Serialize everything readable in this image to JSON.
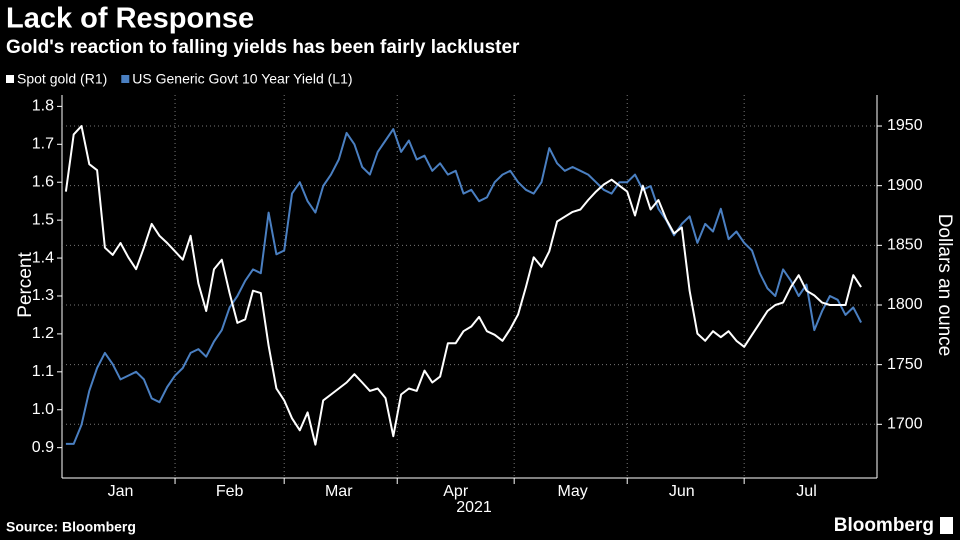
{
  "chart_data": {
    "type": "line",
    "title": "Lack of Response",
    "subtitle": "Gold's reaction to falling yields has been fairly lackluster",
    "ylabel": "Percent",
    "y2label": "Dollars an ounce",
    "xlabel": "2021",
    "source": "Source: Bloomberg",
    "brand": "Bloomberg",
    "categories": [
      null,
      null,
      null,
      null,
      null,
      null,
      null,
      "Jan",
      null,
      null,
      null,
      null,
      null,
      null,
      null,
      null,
      null,
      null,
      null,
      null,
      null,
      "Feb",
      null,
      null,
      null,
      null,
      null,
      null,
      null,
      null,
      null,
      null,
      null,
      null,
      null,
      "Mar",
      null,
      null,
      null,
      null,
      null,
      null,
      null,
      null,
      null,
      null,
      null,
      null,
      null,
      null,
      "Apr",
      null,
      null,
      null,
      null,
      null,
      null,
      null,
      null,
      null,
      null,
      null,
      null,
      null,
      null,
      "May",
      null,
      null,
      null,
      null,
      null,
      null,
      null,
      null,
      null,
      null,
      null,
      null,
      null,
      "Jun",
      null,
      null,
      null,
      null,
      null,
      null,
      null,
      null,
      null,
      null,
      null,
      null,
      null,
      null,
      null,
      "Jul",
      null,
      null,
      null,
      null,
      null,
      null,
      null
    ],
    "series": [
      {
        "name": "Spot gold (R1)",
        "color": "#ffffff",
        "axis": "y2",
        "values": [
          1895,
          1943,
          1950,
          1918,
          1913,
          1848,
          1842,
          1852,
          1840,
          1830,
          1848,
          1868,
          1858,
          1852,
          1845,
          1838,
          1858,
          1818,
          1795,
          1830,
          1838,
          1810,
          1785,
          1788,
          1812,
          1810,
          1766,
          1730,
          1720,
          1705,
          1695,
          1710,
          1683,
          1720,
          1725,
          1730,
          1735,
          1742,
          1735,
          1728,
          1730,
          1722,
          1690,
          1725,
          1730,
          1728,
          1745,
          1735,
          1740,
          1768,
          1768,
          1778,
          1782,
          1790,
          1778,
          1775,
          1770,
          1780,
          1792,
          1815,
          1840,
          1832,
          1845,
          1870,
          1874,
          1878,
          1880,
          1888,
          1895,
          1901,
          1905,
          1900,
          1895,
          1875,
          1900,
          1880,
          1888,
          1872,
          1860,
          1865,
          1812,
          1776,
          1770,
          1778,
          1773,
          1778,
          1770,
          1765,
          1775,
          1785,
          1795,
          1800,
          1802,
          1815,
          1825,
          1812,
          1808,
          1802,
          1800,
          1800,
          1800,
          1825,
          1815
        ]
      },
      {
        "name": "US Generic Govt 10 Year Yield (L1)",
        "color": "#4a7fc1",
        "values": [
          0.91,
          0.91,
          0.96,
          1.05,
          1.11,
          1.15,
          1.12,
          1.08,
          1.09,
          1.1,
          1.08,
          1.03,
          1.02,
          1.06,
          1.09,
          1.11,
          1.15,
          1.16,
          1.14,
          1.18,
          1.21,
          1.27,
          1.3,
          1.34,
          1.37,
          1.36,
          1.52,
          1.41,
          1.42,
          1.57,
          1.6,
          1.55,
          1.52,
          1.59,
          1.62,
          1.66,
          1.73,
          1.7,
          1.64,
          1.62,
          1.68,
          1.71,
          1.74,
          1.68,
          1.71,
          1.66,
          1.67,
          1.63,
          1.65,
          1.62,
          1.63,
          1.57,
          1.58,
          1.55,
          1.56,
          1.6,
          1.62,
          1.63,
          1.6,
          1.58,
          1.57,
          1.6,
          1.69,
          1.65,
          1.63,
          1.64,
          1.63,
          1.62,
          1.6,
          1.58,
          1.57,
          1.6,
          1.6,
          1.62,
          1.58,
          1.59,
          1.53,
          1.5,
          1.46,
          1.49,
          1.51,
          1.44,
          1.49,
          1.47,
          1.53,
          1.45,
          1.47,
          1.44,
          1.42,
          1.36,
          1.32,
          1.3,
          1.37,
          1.34,
          1.3,
          1.33,
          1.21,
          1.26,
          1.3,
          1.29,
          1.25,
          1.27,
          1.23
        ]
      }
    ],
    "ylim": [
      0.82,
      1.83
    ],
    "yticks": [
      0.9,
      {
        "value": 1,
        "label": "1.0"
      },
      1.1,
      1.2,
      1.3,
      1.4,
      1.5,
      1.6,
      1.7,
      1.8
    ],
    "y2lim": [
      1655,
      1976
    ],
    "y2ticks": [
      1700,
      1750,
      1800,
      1850,
      1900,
      1950
    ],
    "grid": true
  }
}
